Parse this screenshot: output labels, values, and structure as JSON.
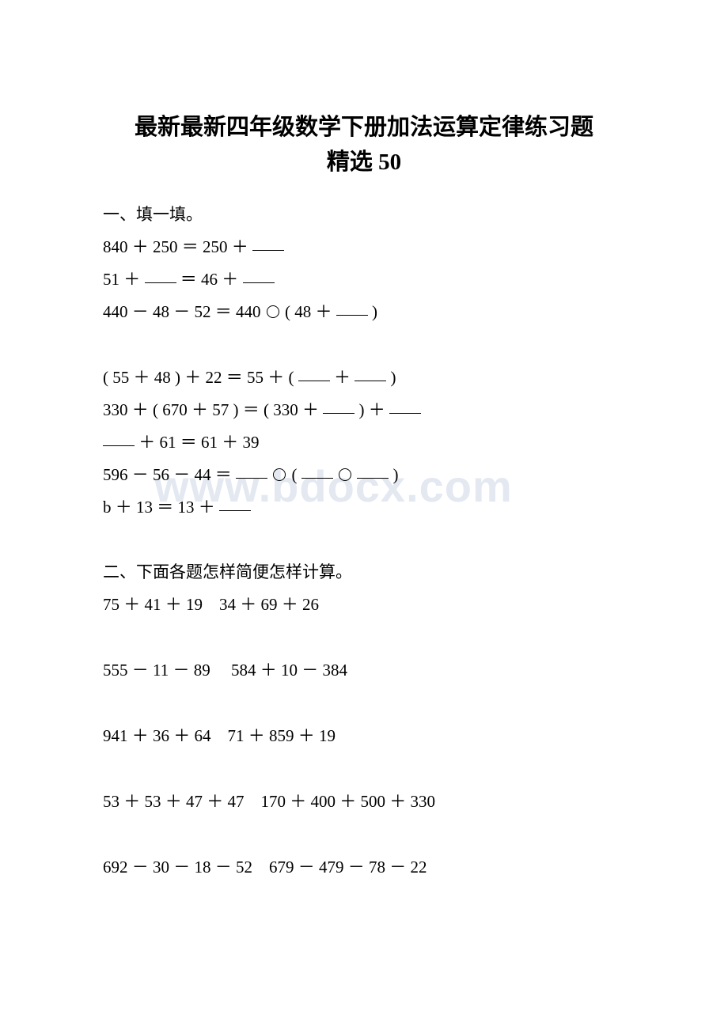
{
  "title_line1": "最新最新四年级数学下册加法运算定律练习题",
  "title_line2": "精选 50",
  "section1_header": "一、填一填。",
  "section1_lines": [
    "840 ＋ 250 ＝ 250 ＋ ____",
    "51 ＋ ____ ＝ 46 ＋ ____",
    "440 － 48 － 52 ＝ 440 ○ ( 48 ＋ ____ )",
    "( 55 ＋ 48 ) ＋ 22 ＝ 55 ＋ ( ____ ＋ ____ )",
    "330 ＋ ( 670 ＋ 57 ) ＝ ( 330 ＋ ____ ) ＋ ____",
    "____ ＋ 61 ＝ 61 ＋ 39",
    "596 － 56 － 44 ＝ ____ ○ ( ____ ○ ____ )",
    "b ＋ 13 ＝ 13 ＋ ____"
  ],
  "section2_header": "二、下面各题怎样简便怎样计算。",
  "section2_lines": [
    "75 ＋ 41  ＋ 19　34 ＋ 69 ＋ 26",
    "555 － 11 － 89 　584 ＋ 10 － 384",
    "941 ＋ 36  ＋ 64　71 ＋ 859 ＋ 19",
    "53 ＋ 53 ＋ 47 ＋ 47　170 ＋ 400 ＋ 500 ＋ 330",
    "692 － 30 － 18 － 52　679 － 479 － 78 － 22"
  ],
  "watermark_text": "www.bdocx.com",
  "colors": {
    "text": "#000000",
    "background": "#ffffff",
    "watermark": "rgba(100, 130, 180, 0.18)"
  },
  "fonts": {
    "title_size": 29,
    "body_size": 21,
    "watermark_size": 56
  }
}
